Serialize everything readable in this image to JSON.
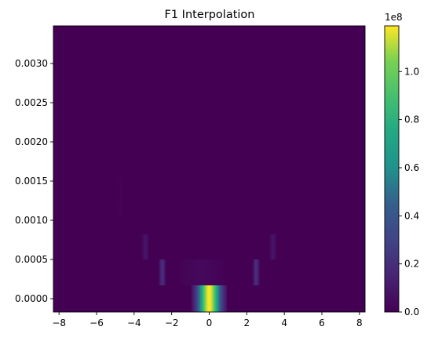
{
  "chart_data": {
    "type": "heatmap",
    "title": "F1 Interpolation",
    "xlabel": "",
    "ylabel": "",
    "xlim": [
      -8.3,
      8.3
    ],
    "ylim": [
      -0.00017,
      0.00348
    ],
    "x_ticks": [
      -8,
      -6,
      -4,
      -2,
      0,
      2,
      4,
      6,
      8
    ],
    "x_tick_labels": [
      "−8",
      "−6",
      "−4",
      "−2",
      "0",
      "2",
      "4",
      "6",
      "8"
    ],
    "y_ticks": [
      0.0,
      0.0005,
      0.001,
      0.0015,
      0.002,
      0.0025,
      0.003
    ],
    "y_tick_labels": [
      "0.0000",
      "0.0005",
      "0.0010",
      "0.0015",
      "0.0020",
      "0.0025",
      "0.0030"
    ],
    "colormap": "viridis",
    "colorbar": {
      "min": 0,
      "max": 1.19,
      "ticks": [
        0.0,
        0.2,
        0.4,
        0.6,
        0.8,
        1.0
      ],
      "tick_labels": [
        "0.0",
        "0.2",
        "0.4",
        "0.6",
        "0.8",
        "1.0"
      ],
      "offset_text": "1e8"
    },
    "regions": [
      {
        "x": [
          -0.95,
          0.95
        ],
        "y": [
          -0.00017,
          0.00017
        ],
        "peak_x": 0.0,
        "sigma": 0.4,
        "peak": 1.19
      },
      {
        "x": [
          -2.7,
          -2.3
        ],
        "y": [
          0.00017,
          0.0005
        ],
        "peak_x": -2.5,
        "sigma": 0.1,
        "peak": 0.2
      },
      {
        "x": [
          2.3,
          2.7
        ],
        "y": [
          0.00017,
          0.0005
        ],
        "peak_x": 2.5,
        "sigma": 0.1,
        "peak": 0.2
      },
      {
        "x": [
          -1.6,
          0.8
        ],
        "y": [
          0.00017,
          0.0005
        ],
        "peak_x": -0.4,
        "sigma": 0.7,
        "peak": 0.03
      },
      {
        "x": [
          -3.6,
          -3.2
        ],
        "y": [
          0.0005,
          0.00082
        ],
        "peak_x": -3.4,
        "sigma": 0.1,
        "peak": 0.09
      },
      {
        "x": [
          3.2,
          3.6
        ],
        "y": [
          0.0005,
          0.00082
        ],
        "peak_x": 3.4,
        "sigma": 0.1,
        "peak": 0.09
      },
      {
        "x": [
          -4.8,
          -4.6
        ],
        "y": [
          0.00105,
          0.00155
        ],
        "peak_x": -4.7,
        "sigma": 0.1,
        "peak": 0.01
      }
    ]
  },
  "colors": {
    "background": "#440154",
    "axis": "#000000"
  }
}
